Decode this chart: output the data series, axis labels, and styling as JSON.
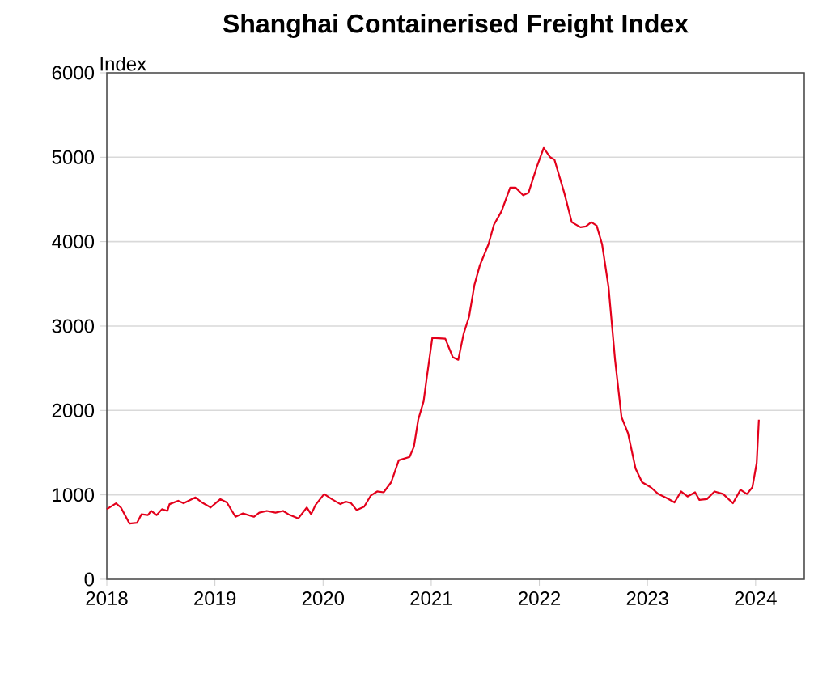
{
  "chart_data": {
    "type": "line",
    "title": "Shanghai Containerised Freight Index",
    "ylabel": "Index",
    "x": [
      2018.0,
      2018.085,
      2018.13,
      2018.21,
      2018.28,
      2018.32,
      2018.38,
      2018.41,
      2018.46,
      2018.51,
      2018.56,
      2018.58,
      2018.66,
      2018.71,
      2018.82,
      2018.88,
      2018.96,
      2019.05,
      2019.11,
      2019.19,
      2019.26,
      2019.36,
      2019.41,
      2019.48,
      2019.56,
      2019.63,
      2019.68,
      2019.77,
      2019.85,
      2019.89,
      2019.93,
      2020.01,
      2020.08,
      2020.16,
      2020.21,
      2020.26,
      2020.31,
      2020.38,
      2020.44,
      2020.5,
      2020.56,
      2020.63,
      2020.7,
      2020.8,
      2020.84,
      2020.88,
      2020.93,
      2020.96,
      2021.01,
      2021.13,
      2021.2,
      2021.25,
      2021.3,
      2021.35,
      2021.4,
      2021.45,
      2021.53,
      2021.58,
      2021.65,
      2021.73,
      2021.78,
      2021.85,
      2021.9,
      2021.98,
      2022.04,
      2022.1,
      2022.14,
      2022.23,
      2022.3,
      2022.38,
      2022.43,
      2022.48,
      2022.53,
      2022.58,
      2022.64,
      2022.7,
      2022.76,
      2022.82,
      2022.89,
      2022.95,
      2023.03,
      2023.1,
      2023.18,
      2023.25,
      2023.31,
      2023.37,
      2023.44,
      2023.48,
      2023.55,
      2023.62,
      2023.7,
      2023.79,
      2023.86,
      2023.92,
      2023.97,
      2024.01,
      2024.03
    ],
    "series": [
      {
        "color": "#e3001b",
        "values": [
          830,
          900,
          850,
          660,
          670,
          770,
          760,
          810,
          760,
          830,
          810,
          890,
          930,
          900,
          970,
          910,
          850,
          950,
          910,
          740,
          780,
          740,
          790,
          810,
          790,
          810,
          770,
          720,
          850,
          770,
          880,
          1010,
          950,
          890,
          920,
          900,
          820,
          860,
          990,
          1040,
          1030,
          1150,
          1410,
          1450,
          1570,
          1890,
          2110,
          2400,
          2860,
          2850,
          2630,
          2600,
          2910,
          3110,
          3490,
          3720,
          3970,
          4200,
          4360,
          4640,
          4640,
          4550,
          4580,
          4900,
          5110,
          5000,
          4970,
          4580,
          4230,
          4170,
          4180,
          4230,
          4190,
          3970,
          3460,
          2600,
          1920,
          1730,
          1310,
          1150,
          1090,
          1010,
          960,
          910,
          1040,
          980,
          1030,
          940,
          950,
          1040,
          1010,
          900,
          1060,
          1010,
          1090,
          1380,
          1890
        ]
      }
    ],
    "xlim": [
      2018,
      2024.45
    ],
    "xticks": [
      2018,
      2019,
      2020,
      2021,
      2022,
      2023,
      2024
    ],
    "ylim": [
      0,
      6000
    ],
    "yticks": [
      0,
      1000,
      2000,
      3000,
      4000,
      5000,
      6000
    ],
    "grid": "y",
    "marker": "none",
    "line_style": "solid"
  }
}
